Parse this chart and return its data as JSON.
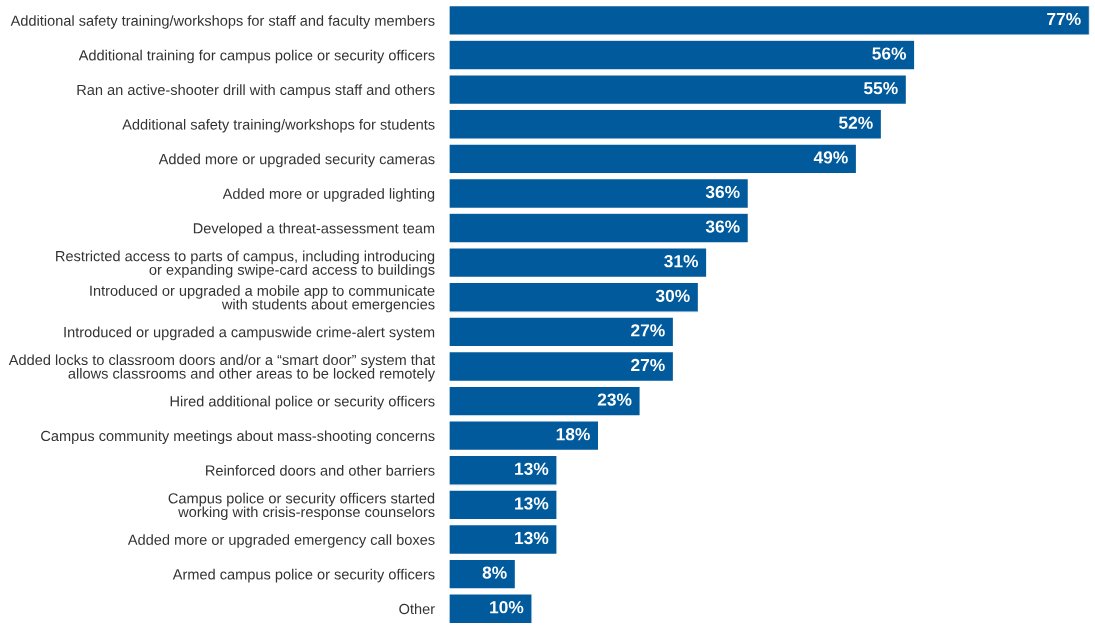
{
  "chart_data": {
    "type": "bar",
    "orientation": "horizontal",
    "data_labels": true,
    "color": "#005a9c",
    "grid": false,
    "legend": false,
    "categories": [
      "Additional safety training/workshops for staff and faculty members",
      "Additional training for campus police or security officers",
      "Ran an active-shooter drill with campus staff and others",
      "Additional safety training/workshops for students",
      "Added more or upgraded security cameras",
      "Added more or upgraded lighting",
      "Developed a threat-assessment team",
      "Restricted access to parts of campus, including introducing\nor expanding swipe-card access to buildings",
      "Introduced or upgraded a mobile app to communicate\nwith students about emergencies",
      "Introduced or upgraded a campuswide crime-alert system",
      "Added locks to classroom doors and/or a “smart door” system that\nallows classrooms and other areas to be locked remotely",
      "Hired additional police or security officers",
      "Campus community meetings about mass-shooting concerns",
      "Reinforced doors and other barriers",
      "Campus police or security officers started\nworking with crisis-response counselors",
      "Added more or upgraded emergency call boxes",
      "Armed campus police or security officers",
      "Other"
    ],
    "values": [
      77,
      56,
      55,
      52,
      49,
      36,
      36,
      31,
      30,
      27,
      27,
      23,
      18,
      13,
      13,
      13,
      8,
      10
    ],
    "value_labels": [
      "77%",
      "56%",
      "55%",
      "52%",
      "49%",
      "36%",
      "36%",
      "31%",
      "30%",
      "27%",
      "27%",
      "23%",
      "18%",
      "13%",
      "13%",
      "13%",
      "8%",
      "10%"
    ]
  }
}
